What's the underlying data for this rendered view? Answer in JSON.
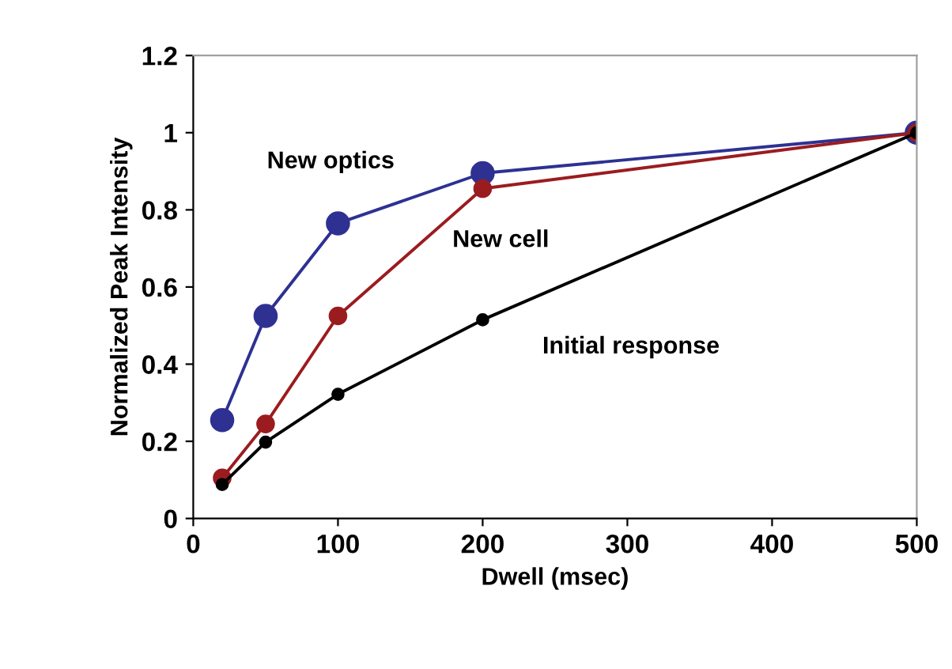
{
  "chart_data": {
    "type": "line",
    "xlabel": "Dwell (msec)",
    "ylabel": "Normalized Peak Intensity",
    "x": [
      20,
      50,
      100,
      200,
      500
    ],
    "series": [
      {
        "name": "New optics",
        "color": "#2e3192",
        "values": [
          0.255,
          0.525,
          0.765,
          0.895,
          1.0
        ]
      },
      {
        "name": "New cell",
        "color": "#9b1c1f",
        "values": [
          0.105,
          0.245,
          0.525,
          0.855,
          1.0
        ]
      },
      {
        "name": "Initial response",
        "color": "#000000",
        "values": [
          0.088,
          0.198,
          0.322,
          0.515,
          1.0
        ]
      }
    ],
    "xlim": [
      0,
      500
    ],
    "xticks": [
      0,
      100,
      200,
      300,
      400,
      500
    ],
    "ylim": [
      0,
      1.2
    ],
    "yticks": [
      0,
      0.2,
      0.4,
      0.6,
      0.8,
      1,
      1.2
    ],
    "marker": "circle",
    "line_style": "solid",
    "grid": false,
    "legend": false
  }
}
